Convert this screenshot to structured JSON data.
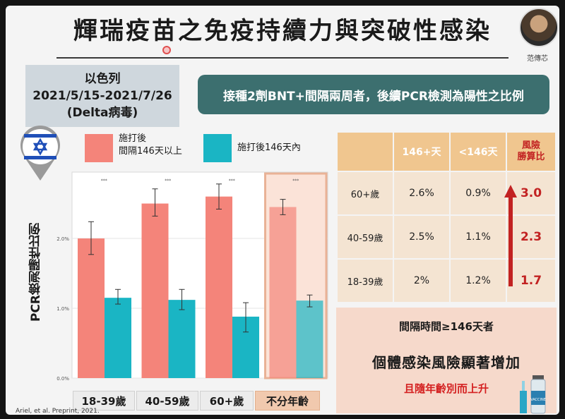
{
  "title": "輝瑞疫苗之免疫持續力與突破性感染",
  "speaker_name": "范傳芯",
  "country_box": {
    "line1": "以色列",
    "line2": "2021/5/15-2021/7/26",
    "line3": "(Delta病毒)"
  },
  "banner": "接種2劑BNT+間隔兩周者，後續PCR檢測為陽性之比例",
  "colors": {
    "salmon": "#f4847a",
    "teal": "#1ab5c4",
    "banner": "#3c6f6f",
    "accent_red": "#c22222",
    "table_header": "#f0c68f"
  },
  "chart_data": {
    "type": "bar",
    "categories": [
      "18-39歲",
      "40-59歲",
      "60+歲",
      "不分年齡"
    ],
    "series": [
      {
        "name": "施打後\n間隔146天以上",
        "values": [
          2.0,
          2.5,
          2.6,
          2.45
        ],
        "err_low": [
          1.77,
          2.32,
          2.42,
          2.34
        ],
        "err_high": [
          2.24,
          2.71,
          2.78,
          2.56
        ]
      },
      {
        "name": "施打後146天內",
        "values": [
          1.15,
          1.12,
          0.88,
          1.11
        ],
        "err_low": [
          1.06,
          0.98,
          0.66,
          1.02
        ],
        "err_high": [
          1.27,
          1.27,
          1.08,
          1.19
        ]
      }
    ],
    "ylabel": "PCR檢測陽性比例",
    "y_ticks": [
      "0.0%",
      "1.0%",
      "2.0%"
    ],
    "y_tick_values": [
      0,
      1,
      2
    ],
    "ylim": [
      0,
      2.95
    ],
    "significance": [
      "***",
      "***",
      "***",
      "***"
    ],
    "highlight_category": "不分年齡",
    "grid": true
  },
  "legend": {
    "item1": "施打後\n間隔146天以上",
    "item2": "施打後146天內"
  },
  "risk_table": {
    "headers": [
      "",
      "146+天",
      "<146天",
      "風險\n勝算比"
    ],
    "rows": [
      {
        "age": "60+歲",
        "over": "2.6%",
        "under": "0.9%",
        "risk": "3.0"
      },
      {
        "age": "40-59歲",
        "over": "2.5%",
        "under": "1.1%",
        "risk": "2.3"
      },
      {
        "age": "18-39歲",
        "over": "2%",
        "under": "1.2%",
        "risk": "1.7"
      }
    ]
  },
  "conclusion": {
    "line1": "間隔時間≥146天者",
    "line2": "個體感染風險顯著增加",
    "line3": "且隨年齡別而上升"
  },
  "source": "Ariel, et al. Preprint, 2021.",
  "vaccine_label": "VACCINE"
}
